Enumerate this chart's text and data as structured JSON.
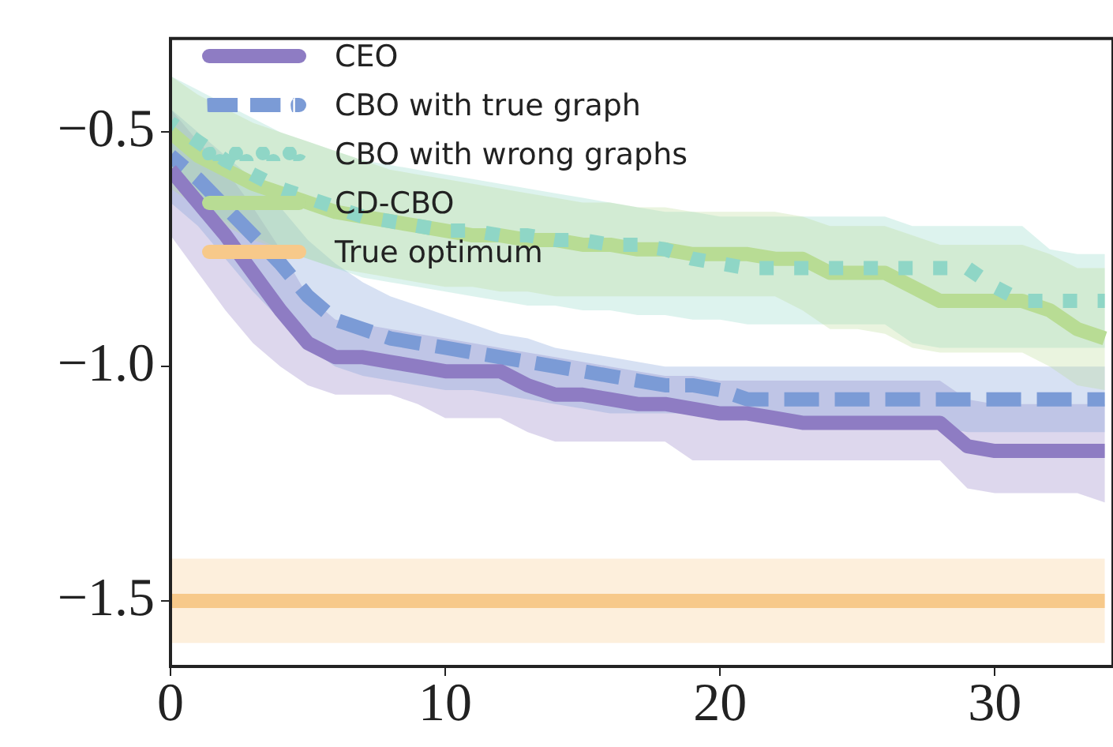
{
  "chart_data": {
    "type": "line",
    "x": [
      0,
      1,
      2,
      3,
      4,
      5,
      6,
      7,
      8,
      9,
      10,
      11,
      12,
      13,
      14,
      15,
      16,
      17,
      18,
      19,
      20,
      21,
      22,
      23,
      24,
      25,
      26,
      27,
      28,
      29,
      30,
      31,
      32,
      33,
      34
    ],
    "xlim": [
      0,
      34.3
    ],
    "ylim": [
      -1.64,
      -0.3
    ],
    "xticks": [
      0,
      10,
      20,
      30
    ],
    "yticks": [
      {
        "value": -0.5,
        "label": "−0.5"
      },
      {
        "value": -1.0,
        "label": "−1.0"
      },
      {
        "value": -1.5,
        "label": "−1.5"
      }
    ],
    "grid": false,
    "legend": "top left",
    "marker": "none",
    "series": [
      {
        "name": "CEO",
        "color": "#8e7cc3",
        "line_style": "solid",
        "values": [
          -0.58,
          -0.65,
          -0.72,
          -0.8,
          -0.88,
          -0.95,
          -0.98,
          -0.98,
          -0.99,
          -1.0,
          -1.01,
          -1.01,
          -1.01,
          -1.04,
          -1.06,
          -1.06,
          -1.07,
          -1.08,
          -1.08,
          -1.09,
          -1.1,
          -1.1,
          -1.11,
          -1.12,
          -1.12,
          -1.12,
          -1.12,
          -1.12,
          -1.12,
          -1.17,
          -1.18,
          -1.18,
          -1.18,
          -1.18,
          -1.18
        ],
        "lower": [
          -0.72,
          -0.8,
          -0.88,
          -0.95,
          -1.0,
          -1.04,
          -1.06,
          -1.06,
          -1.06,
          -1.08,
          -1.11,
          -1.11,
          -1.11,
          -1.14,
          -1.16,
          -1.16,
          -1.16,
          -1.16,
          -1.16,
          -1.2,
          -1.2,
          -1.2,
          -1.2,
          -1.2,
          -1.2,
          -1.2,
          -1.2,
          -1.2,
          -1.2,
          -1.26,
          -1.27,
          -1.27,
          -1.27,
          -1.27,
          -1.29
        ],
        "upper": [
          -0.45,
          -0.52,
          -0.58,
          -0.66,
          -0.75,
          -0.85,
          -0.9,
          -0.91,
          -0.92,
          -0.93,
          -0.94,
          -0.95,
          -0.96,
          -0.97,
          -0.98,
          -0.99,
          -1.0,
          -1.01,
          -1.02,
          -1.02,
          -1.03,
          -1.03,
          -1.03,
          -1.03,
          -1.03,
          -1.03,
          -1.03,
          -1.03,
          -1.03,
          -1.07,
          -1.08,
          -1.08,
          -1.08,
          -1.08,
          -1.08
        ]
      },
      {
        "name": "CBO with true graph",
        "color": "#7b9bd6",
        "line_style": "dashed",
        "values": [
          -0.55,
          -0.6,
          -0.66,
          -0.72,
          -0.78,
          -0.85,
          -0.9,
          -0.92,
          -0.94,
          -0.95,
          -0.96,
          -0.97,
          -0.98,
          -0.99,
          -1.0,
          -1.01,
          -1.02,
          -1.03,
          -1.04,
          -1.04,
          -1.05,
          -1.07,
          -1.07,
          -1.07,
          -1.07,
          -1.07,
          -1.07,
          -1.07,
          -1.07,
          -1.07,
          -1.07,
          -1.07,
          -1.07,
          -1.07,
          -1.07
        ],
        "lower": [
          -0.65,
          -0.7,
          -0.77,
          -0.84,
          -0.9,
          -0.96,
          -1.0,
          -1.02,
          -1.03,
          -1.04,
          -1.05,
          -1.05,
          -1.06,
          -1.07,
          -1.08,
          -1.09,
          -1.1,
          -1.1,
          -1.1,
          -1.1,
          -1.1,
          -1.11,
          -1.11,
          -1.11,
          -1.11,
          -1.11,
          -1.11,
          -1.11,
          -1.13,
          -1.14,
          -1.14,
          -1.14,
          -1.14,
          -1.14,
          -1.14
        ],
        "upper": [
          -0.45,
          -0.5,
          -0.55,
          -0.6,
          -0.66,
          -0.73,
          -0.78,
          -0.82,
          -0.85,
          -0.87,
          -0.89,
          -0.91,
          -0.93,
          -0.94,
          -0.96,
          -0.97,
          -0.98,
          -0.99,
          -1.0,
          -1.0,
          -1.0,
          -1.0,
          -1.0,
          -1.0,
          -1.0,
          -1.0,
          -1.0,
          -1.0,
          -1.0,
          -1.0,
          -1.0,
          -1.0,
          -1.0,
          -1.0,
          -1.0
        ]
      },
      {
        "name": "CBO with wrong graphs",
        "color": "#8fd6c6",
        "line_style": "dotted",
        "values": [
          -0.48,
          -0.52,
          -0.56,
          -0.59,
          -0.62,
          -0.64,
          -0.66,
          -0.68,
          -0.69,
          -0.7,
          -0.71,
          -0.71,
          -0.72,
          -0.72,
          -0.73,
          -0.73,
          -0.74,
          -0.74,
          -0.75,
          -0.77,
          -0.78,
          -0.79,
          -0.79,
          -0.79,
          -0.79,
          -0.79,
          -0.79,
          -0.79,
          -0.79,
          -0.79,
          -0.83,
          -0.86,
          -0.86,
          -0.86,
          -0.86
        ],
        "lower": [
          -0.6,
          -0.65,
          -0.69,
          -0.72,
          -0.75,
          -0.77,
          -0.79,
          -0.81,
          -0.82,
          -0.83,
          -0.84,
          -0.85,
          -0.86,
          -0.87,
          -0.87,
          -0.88,
          -0.88,
          -0.89,
          -0.89,
          -0.9,
          -0.9,
          -0.91,
          -0.91,
          -0.91,
          -0.91,
          -0.91,
          -0.91,
          -0.95,
          -0.96,
          -0.96,
          -0.96,
          -0.96,
          -0.96,
          -0.96,
          -0.96
        ],
        "upper": [
          -0.38,
          -0.41,
          -0.44,
          -0.47,
          -0.5,
          -0.52,
          -0.54,
          -0.56,
          -0.57,
          -0.58,
          -0.59,
          -0.6,
          -0.61,
          -0.62,
          -0.63,
          -0.64,
          -0.65,
          -0.66,
          -0.67,
          -0.67,
          -0.68,
          -0.68,
          -0.68,
          -0.68,
          -0.68,
          -0.68,
          -0.68,
          -0.7,
          -0.7,
          -0.7,
          -0.7,
          -0.7,
          -0.75,
          -0.76,
          -0.76
        ]
      },
      {
        "name": "CD-CBO",
        "color": "#b8dc94",
        "line_style": "solid",
        "values": [
          -0.5,
          -0.55,
          -0.58,
          -0.61,
          -0.63,
          -0.65,
          -0.67,
          -0.68,
          -0.69,
          -0.7,
          -0.71,
          -0.72,
          -0.72,
          -0.73,
          -0.73,
          -0.74,
          -0.74,
          -0.75,
          -0.75,
          -0.76,
          -0.76,
          -0.76,
          -0.77,
          -0.77,
          -0.8,
          -0.8,
          -0.8,
          -0.83,
          -0.86,
          -0.86,
          -0.86,
          -0.86,
          -0.88,
          -0.92,
          -0.94
        ],
        "lower": [
          -0.62,
          -0.66,
          -0.7,
          -0.73,
          -0.75,
          -0.77,
          -0.79,
          -0.8,
          -0.81,
          -0.82,
          -0.83,
          -0.83,
          -0.84,
          -0.84,
          -0.85,
          -0.85,
          -0.85,
          -0.85,
          -0.85,
          -0.85,
          -0.85,
          -0.85,
          -0.85,
          -0.88,
          -0.92,
          -0.92,
          -0.93,
          -0.96,
          -0.97,
          -0.97,
          -0.97,
          -0.97,
          -1.0,
          -1.04,
          -1.05
        ],
        "upper": [
          -0.38,
          -0.42,
          -0.45,
          -0.48,
          -0.5,
          -0.52,
          -0.54,
          -0.56,
          -0.58,
          -0.59,
          -0.6,
          -0.61,
          -0.62,
          -0.63,
          -0.64,
          -0.65,
          -0.65,
          -0.66,
          -0.66,
          -0.67,
          -0.67,
          -0.67,
          -0.67,
          -0.68,
          -0.7,
          -0.7,
          -0.7,
          -0.72,
          -0.74,
          -0.74,
          -0.74,
          -0.74,
          -0.76,
          -0.79,
          -0.79
        ]
      },
      {
        "name": "True optimum",
        "color": "#f7c98a",
        "line_style": "solid",
        "values": [
          -1.5,
          -1.5,
          -1.5,
          -1.5,
          -1.5,
          -1.5,
          -1.5,
          -1.5,
          -1.5,
          -1.5,
          -1.5,
          -1.5,
          -1.5,
          -1.5,
          -1.5,
          -1.5,
          -1.5,
          -1.5,
          -1.5,
          -1.5,
          -1.5,
          -1.5,
          -1.5,
          -1.5,
          -1.5,
          -1.5,
          -1.5,
          -1.5,
          -1.5,
          -1.5,
          -1.5,
          -1.5,
          -1.5,
          -1.5,
          -1.5
        ],
        "lower": [
          -1.59,
          -1.59,
          -1.59,
          -1.59,
          -1.59,
          -1.59,
          -1.59,
          -1.59,
          -1.59,
          -1.59,
          -1.59,
          -1.59,
          -1.59,
          -1.59,
          -1.59,
          -1.59,
          -1.59,
          -1.59,
          -1.59,
          -1.59,
          -1.59,
          -1.59,
          -1.59,
          -1.59,
          -1.59,
          -1.59,
          -1.59,
          -1.59,
          -1.59,
          -1.59,
          -1.59,
          -1.59,
          -1.59,
          -1.59,
          -1.59
        ],
        "upper": [
          -1.41,
          -1.41,
          -1.41,
          -1.41,
          -1.41,
          -1.41,
          -1.41,
          -1.41,
          -1.41,
          -1.41,
          -1.41,
          -1.41,
          -1.41,
          -1.41,
          -1.41,
          -1.41,
          -1.41,
          -1.41,
          -1.41,
          -1.41,
          -1.41,
          -1.41,
          -1.41,
          -1.41,
          -1.41,
          -1.41,
          -1.41,
          -1.41,
          -1.41,
          -1.41,
          -1.41,
          -1.41,
          -1.41,
          -1.41,
          -1.41
        ]
      }
    ]
  }
}
